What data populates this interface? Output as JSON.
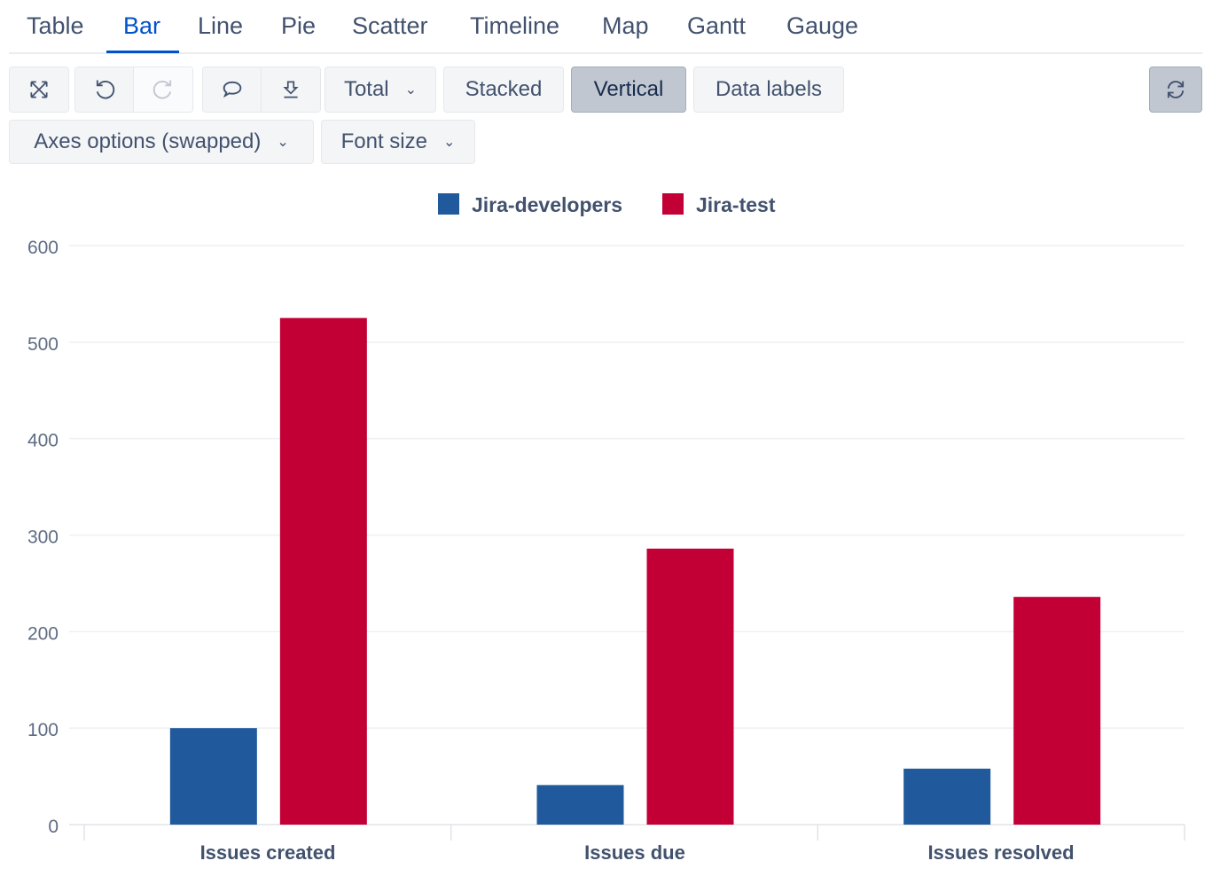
{
  "tabs": [
    "Table",
    "Bar",
    "Line",
    "Pie",
    "Scatter",
    "Timeline",
    "Map",
    "Gantt",
    "Gauge"
  ],
  "active_tab": "Bar",
  "toolbar": {
    "total": "Total",
    "stacked": "Stacked",
    "vertical": "Vertical",
    "data_labels": "Data labels",
    "axes_options": "Axes options (swapped)",
    "font_size": "Font size",
    "vertical_selected": true
  },
  "icons": [
    "expand-icon",
    "undo-icon",
    "redo-icon",
    "comment-icon",
    "download-icon",
    "chevron-down-icon",
    "refresh-icon"
  ],
  "chart_data": {
    "type": "bar",
    "categories": [
      "Issues created",
      "Issues due",
      "Issues resolved"
    ],
    "series": [
      {
        "name": "Jira-developers",
        "color": "#205a9c",
        "values": [
          100,
          41,
          58
        ]
      },
      {
        "name": "Jira-test",
        "color": "#c20036",
        "values": [
          525,
          286,
          236
        ]
      }
    ],
    "ylim": [
      0,
      600
    ],
    "yticks": [
      0,
      100,
      200,
      300,
      400,
      500,
      600
    ],
    "grid": true,
    "legend": "top-center"
  }
}
